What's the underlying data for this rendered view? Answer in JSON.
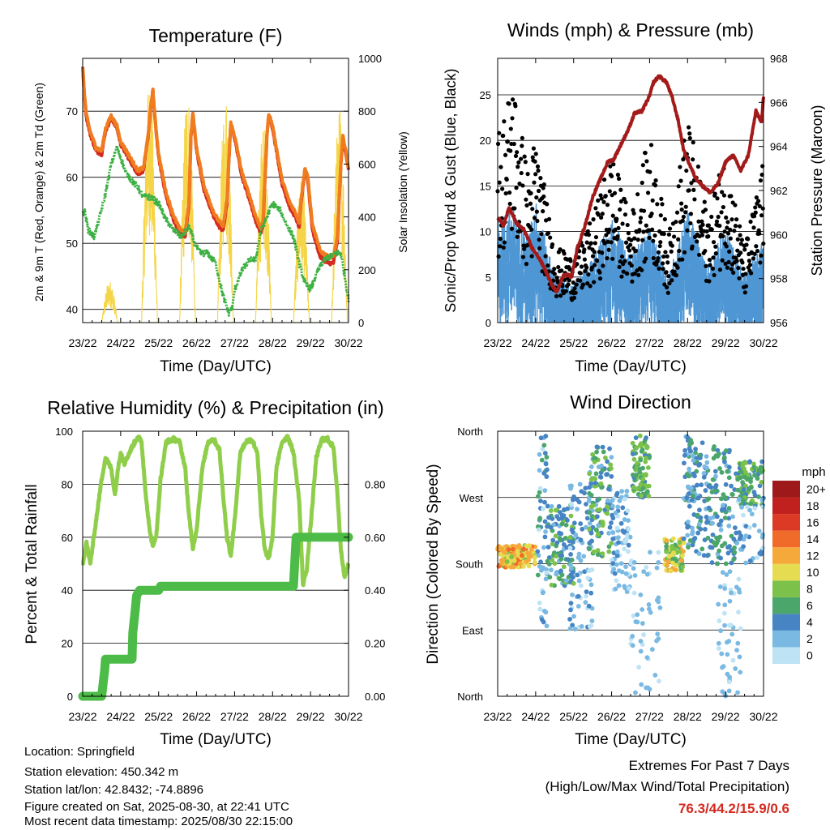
{
  "chart_data": [
    {
      "type": "line",
      "title": "Temperature (F)",
      "xlabel": "Time (Day/UTC)",
      "ylabel": "2m & 9m T (Red, Orange) & 2m Td (Green)",
      "y2label": "Solar Insolation (Yellow)",
      "x_ticks": [
        "23/22",
        "24/22",
        "25/22",
        "26/22",
        "27/22",
        "28/22",
        "29/22",
        "30/22"
      ],
      "ylim": [
        38,
        78
      ],
      "y_ticks": [
        40,
        50,
        60,
        70
      ],
      "y2lim": [
        0,
        1000
      ],
      "y2_ticks": [
        0,
        200,
        400,
        600,
        800,
        1000
      ],
      "grid": true,
      "series": [
        {
          "name": "2m T",
          "color": "#d42a20",
          "x": [
            0,
            0.05,
            0.1,
            0.2,
            0.35,
            0.5,
            0.6,
            0.75,
            0.9,
            1.0,
            1.15,
            1.3,
            1.45,
            1.6,
            1.72,
            1.8,
            1.85,
            1.9,
            2.0,
            2.2,
            2.4,
            2.55,
            2.7,
            2.8,
            2.85,
            2.9,
            3.0,
            3.2,
            3.45,
            3.6,
            3.7,
            3.8,
            3.85,
            3.9,
            4.0,
            4.2,
            4.4,
            4.55,
            4.7,
            4.75,
            4.85,
            4.9,
            5.0,
            5.25,
            5.45,
            5.6,
            5.7,
            5.75,
            5.85,
            5.92,
            6.05,
            6.25,
            6.45,
            6.6,
            6.7,
            6.8,
            6.85,
            6.92,
            7.0
          ],
          "y": [
            76.5,
            72,
            69,
            66.5,
            64,
            63.5,
            67,
            69,
            67.5,
            65,
            63.5,
            62,
            60.5,
            61,
            66,
            71,
            73,
            69,
            63,
            57,
            53.5,
            51.5,
            51,
            56,
            66,
            69.5,
            64,
            58,
            54,
            52.5,
            52,
            56,
            62.5,
            68,
            66,
            60,
            56.5,
            53.5,
            51.5,
            53,
            66,
            69.5,
            67.5,
            59,
            55.5,
            54,
            52.5,
            56,
            61,
            60,
            52,
            48,
            47,
            47,
            50,
            62,
            66,
            64,
            61
          ]
        },
        {
          "name": "9m T",
          "color": "#f07c20",
          "x": [
            0,
            0.05,
            0.1,
            0.2,
            0.35,
            0.5,
            0.6,
            0.75,
            0.9,
            1.0,
            1.15,
            1.3,
            1.45,
            1.6,
            1.72,
            1.8,
            1.85,
            1.9,
            2.0,
            2.2,
            2.4,
            2.55,
            2.7,
            2.8,
            2.85,
            2.9,
            3.0,
            3.2,
            3.45,
            3.6,
            3.7,
            3.8,
            3.85,
            3.9,
            4.0,
            4.2,
            4.4,
            4.55,
            4.7,
            4.75,
            4.85,
            4.9,
            5.0,
            5.25,
            5.45,
            5.6,
            5.7,
            5.75,
            5.85,
            5.92,
            6.05,
            6.25,
            6.45,
            6.6,
            6.7,
            6.8,
            6.85,
            6.92,
            7.0
          ],
          "y": [
            76.8,
            72.4,
            69.4,
            66.9,
            64.5,
            64,
            67.4,
            69.3,
            67.8,
            65.4,
            64,
            62.5,
            61,
            61.4,
            66.3,
            71.2,
            73.2,
            69.3,
            63.5,
            57.6,
            54.1,
            52.2,
            51.7,
            56.4,
            66.3,
            69.8,
            64.4,
            58.6,
            54.7,
            53.2,
            52.7,
            56.5,
            62.8,
            68.2,
            66.3,
            60.5,
            57.1,
            54.2,
            52.2,
            53.6,
            66.3,
            69.7,
            67.8,
            59.6,
            56.2,
            54.7,
            53.2,
            56.6,
            61.3,
            60.4,
            52.8,
            48.9,
            48,
            48,
            50.6,
            62.3,
            66.2,
            64.3,
            61.3
          ]
        },
        {
          "name": "2m Td",
          "color": "#3cb043",
          "x": [
            0,
            0.05,
            0.15,
            0.3,
            0.45,
            0.6,
            0.75,
            0.9,
            1.0,
            1.15,
            1.3,
            1.45,
            1.6,
            1.8,
            2.0,
            2.2,
            2.4,
            2.6,
            2.8,
            2.95,
            3.1,
            3.3,
            3.5,
            3.7,
            3.85,
            3.95,
            4.0,
            4.2,
            4.4,
            4.55,
            4.7,
            4.85,
            5.0,
            5.2,
            5.4,
            5.55,
            5.7,
            5.85,
            6.0,
            6.1,
            6.2,
            6.35,
            6.5,
            6.65,
            6.8,
            6.9,
            7.0
          ],
          "y": [
            54.5,
            55,
            52,
            51,
            54,
            57.5,
            62,
            64.5,
            63,
            60.5,
            59.5,
            58.5,
            57,
            57,
            56,
            53.5,
            52,
            51,
            52.5,
            50,
            48.5,
            48.5,
            47,
            42,
            39.5,
            40.5,
            43,
            46,
            47.5,
            47.5,
            52,
            54,
            56,
            55,
            52.5,
            51,
            47,
            44,
            43,
            44.5,
            46,
            47.5,
            48,
            48.5,
            48.5,
            45,
            41.5
          ]
        }
      ],
      "insolation": {
        "name": "Solar Insolation",
        "color": "#f5d547",
        "days": [
          {
            "start": 0.5,
            "peak": 1.02,
            "amp": 160
          },
          {
            "start": 1.55,
            "peak": 1.85,
            "amp": 930
          },
          {
            "start": 2.55,
            "peak": 2.85,
            "amp": 900
          },
          {
            "start": 3.55,
            "peak": 3.85,
            "amp": 880
          },
          {
            "start": 4.55,
            "peak": 4.85,
            "amp": 760
          },
          {
            "start": 5.55,
            "peak": 5.85,
            "amp": 560
          },
          {
            "start": 6.55,
            "peak": 6.85,
            "amp": 820
          }
        ]
      }
    },
    {
      "type": "line",
      "title": "Winds (mph) & Pressure (mb)",
      "xlabel": "Time (Day/UTC)",
      "ylabel": "Sonic/Prop Wind & Gust (Blue, Black)",
      "y2label": "Station Pressure (Maroon)",
      "x_ticks": [
        "23/22",
        "24/22",
        "25/22",
        "26/22",
        "27/22",
        "28/22",
        "29/22",
        "30/22"
      ],
      "ylim": [
        0,
        29
      ],
      "y_ticks": [
        0,
        5,
        10,
        15,
        20,
        25
      ],
      "y2lim": [
        956,
        968
      ],
      "y2_ticks": [
        956,
        958,
        960,
        962,
        964,
        966,
        968
      ],
      "grid": true,
      "series": [
        {
          "name": "Station Pressure",
          "color": "#a31a1a",
          "x": [
            0,
            0.15,
            0.3,
            0.5,
            0.7,
            0.9,
            1.1,
            1.25,
            1.4,
            1.55,
            1.75,
            1.95,
            2.1,
            2.3,
            2.5,
            2.7,
            2.9,
            3.05,
            3.25,
            3.45,
            3.6,
            3.8,
            4.0,
            4.1,
            4.25,
            4.45,
            4.6,
            4.75,
            4.9,
            5.05,
            5.2,
            5.4,
            5.6,
            5.8,
            6.0,
            6.2,
            6.4,
            6.6,
            6.8,
            6.95,
            7.0
          ],
          "y": [
            960.8,
            960.4,
            961.2,
            960.5,
            960.2,
            959.4,
            958.9,
            958.4,
            957.8,
            957.4,
            958.2,
            958.1,
            959.4,
            960.4,
            961.7,
            962.5,
            963.3,
            963.4,
            964.1,
            964.8,
            965.5,
            965.6,
            966.3,
            966.9,
            967.2,
            966.9,
            966.2,
            965.2,
            963.8,
            963.2,
            962.6,
            962.2,
            961.9,
            962.3,
            963.3,
            963.6,
            962.9,
            963.6,
            965.6,
            965.1,
            966.3
          ]
        },
        {
          "name": "Sonic/Prop Wind",
          "color": "#4f97d4",
          "envelope": [
            {
              "x": 0,
              "hi": 11
            },
            {
              "x": 0.4,
              "hi": 12
            },
            {
              "x": 0.8,
              "hi": 9
            },
            {
              "x": 1.0,
              "hi": 13
            },
            {
              "x": 1.5,
              "hi": 5
            },
            {
              "x": 2.0,
              "hi": 4
            },
            {
              "x": 2.5,
              "hi": 7
            },
            {
              "x": 3.0,
              "hi": 11
            },
            {
              "x": 3.5,
              "hi": 7
            },
            {
              "x": 4.0,
              "hi": 10
            },
            {
              "x": 4.5,
              "hi": 5
            },
            {
              "x": 5.0,
              "hi": 12
            },
            {
              "x": 5.5,
              "hi": 6
            },
            {
              "x": 6.0,
              "hi": 10
            },
            {
              "x": 6.5,
              "hi": 5
            },
            {
              "x": 7.0,
              "hi": 9
            }
          ]
        },
        {
          "name": "Gust",
          "color": "#000000",
          "envelope": [
            {
              "x": 0,
              "hi": 20
            },
            {
              "x": 0.4,
              "hi": 26
            },
            {
              "x": 0.8,
              "hi": 16
            },
            {
              "x": 1.0,
              "hi": 20
            },
            {
              "x": 1.5,
              "hi": 8
            },
            {
              "x": 2.0,
              "hi": 7
            },
            {
              "x": 2.5,
              "hi": 11
            },
            {
              "x": 3.0,
              "hi": 18
            },
            {
              "x": 3.5,
              "hi": 11
            },
            {
              "x": 4.0,
              "hi": 20
            },
            {
              "x": 4.5,
              "hi": 9
            },
            {
              "x": 5.0,
              "hi": 22
            },
            {
              "x": 5.5,
              "hi": 12
            },
            {
              "x": 6.0,
              "hi": 18
            },
            {
              "x": 6.5,
              "hi": 8
            },
            {
              "x": 7.0,
              "hi": 17
            }
          ]
        }
      ]
    },
    {
      "type": "line",
      "title": "Relative Humidity (%) & Precipitation (in)",
      "xlabel": "Time (Day/UTC)",
      "ylabel": "Percent & Total Rainfall",
      "x_ticks": [
        "23/22",
        "24/22",
        "25/22",
        "26/22",
        "27/22",
        "28/22",
        "29/22",
        "30/22"
      ],
      "ylim": [
        0,
        100
      ],
      "y_ticks": [
        0,
        20,
        40,
        60,
        80,
        100
      ],
      "y2lim": [
        0,
        1
      ],
      "y2_ticks": [
        "0.00",
        "0.20",
        "0.40",
        "0.60",
        "0.80"
      ],
      "grid": true,
      "series": [
        {
          "name": "Relative Humidity",
          "color": "#8fce4a",
          "x": [
            0,
            0.1,
            0.2,
            0.35,
            0.5,
            0.6,
            0.75,
            0.85,
            0.95,
            1.0,
            1.1,
            1.2,
            1.3,
            1.45,
            1.55,
            1.65,
            1.75,
            1.85,
            1.95,
            2.05,
            2.2,
            2.4,
            2.55,
            2.7,
            2.8,
            2.9,
            3.0,
            3.15,
            3.3,
            3.45,
            3.6,
            3.7,
            3.8,
            3.9,
            4.0,
            4.15,
            4.3,
            4.45,
            4.6,
            4.7,
            4.8,
            4.9,
            5.0,
            5.1,
            5.25,
            5.4,
            5.55,
            5.7,
            5.8,
            5.9,
            6.0,
            6.15,
            6.3,
            6.45,
            6.6,
            6.7,
            6.8,
            6.9,
            7.0
          ],
          "y": [
            50,
            58,
            50,
            66,
            82,
            90,
            86,
            76,
            88,
            92,
            88,
            91,
            94,
            98,
            96,
            78,
            64,
            56,
            62,
            82,
            96,
            97,
            96,
            86,
            68,
            56,
            63,
            86,
            96,
            97,
            93,
            76,
            60,
            53,
            66,
            92,
            96,
            97,
            92,
            68,
            55,
            52,
            60,
            86,
            96,
            98,
            92,
            74,
            42,
            48,
            64,
            90,
            97,
            97,
            94,
            78,
            55,
            45,
            50
          ]
        },
        {
          "name": "Total Rainfall",
          "color": "#4cbb47",
          "x": [
            0,
            0.5,
            0.58,
            0.6,
            1.3,
            1.32,
            1.38,
            1.42,
            1.5,
            2.0,
            2.05,
            5.55,
            5.62,
            7.0
          ],
          "y": [
            0,
            0,
            0.1,
            0.14,
            0.14,
            0.24,
            0.32,
            0.38,
            0.4,
            0.4,
            0.415,
            0.415,
            0.6,
            0.6
          ]
        }
      ]
    },
    {
      "type": "scatter",
      "title": "Wind Direction",
      "xlabel": "Time (Day/UTC)",
      "ylabel": "Direction (Colored By Speed)",
      "x_ticks": [
        "23/22",
        "24/22",
        "25/22",
        "26/22",
        "27/22",
        "28/22",
        "29/22",
        "30/22"
      ],
      "y_ticks": [
        "North",
        "East",
        "South",
        "West",
        "North"
      ],
      "ylim": [
        0,
        360
      ],
      "grid": true,
      "colorbar": {
        "title": "mph",
        "labels": [
          "0",
          "2",
          "4",
          "6",
          "8",
          "10",
          "12",
          "14",
          "16",
          "18",
          "20+"
        ],
        "colors": [
          "#bde3f5",
          "#7ab9e2",
          "#4684c4",
          "#4aa66a",
          "#7cc24a",
          "#e6dc52",
          "#f6a93b",
          "#f06a2a",
          "#dc3a24",
          "#c0211f",
          "#9e1a1a"
        ]
      }
    }
  ],
  "info": {
    "location": "Location: Springfield",
    "elevation": "Station elevation: 450.342 m",
    "latlon": "Station lat/lon: 42.8432; -74.8896",
    "created": "Figure created on Sat, 2025-08-30, at 22:41 UTC",
    "recent": "Most recent data timestamp: 2025/08/30 22:15:00"
  },
  "extremes": {
    "line1": "Extremes For Past 7 Days",
    "line2": "(High/Low/Max Wind/Total Precipitation)",
    "values": "76.3/44.2/15.9/0.6",
    "values_color": "#d42a20"
  }
}
